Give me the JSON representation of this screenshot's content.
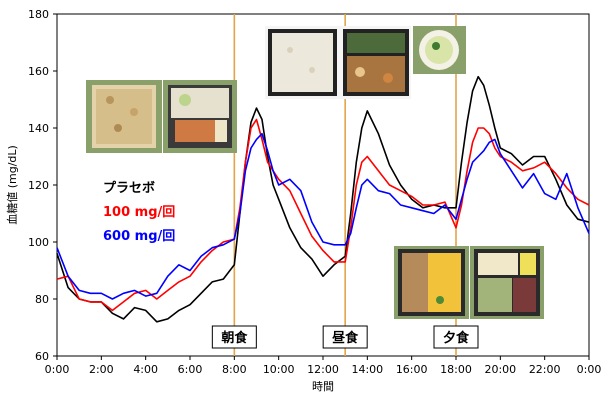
{
  "chart_data": {
    "type": "line",
    "xlabel": "時間",
    "ylabel": "血糖値 (mg/dL)",
    "xlim": [
      0,
      24
    ],
    "ylim": [
      60,
      180
    ],
    "x_ticks": [
      "0:00",
      "2:00",
      "4:00",
      "6:00",
      "8:00",
      "10:00",
      "12:00",
      "14:00",
      "16:00",
      "18:00",
      "20:00",
      "22:00",
      "0:00"
    ],
    "y_ticks": [
      60,
      80,
      100,
      120,
      140,
      160,
      180
    ],
    "grid": false,
    "legend_position": "left",
    "meals": [
      {
        "label": "朝食",
        "time": 8.0
      },
      {
        "label": "昼食",
        "time": 13.0
      },
      {
        "label": "夕食",
        "time": 18.0
      }
    ],
    "series": [
      {
        "name": "プラセボ",
        "color": "#000000",
        "x": [
          0,
          0.5,
          1,
          1.5,
          2,
          2.5,
          3,
          3.5,
          4,
          4.5,
          5,
          5.5,
          6,
          6.5,
          7,
          7.5,
          8,
          8.25,
          8.5,
          8.75,
          9,
          9.25,
          9.5,
          9.75,
          10,
          10.5,
          11,
          11.5,
          12,
          12.5,
          13,
          13.25,
          13.5,
          13.75,
          14,
          14.5,
          15,
          15.5,
          16,
          16.5,
          17,
          17.5,
          18,
          18.25,
          18.5,
          18.75,
          19,
          19.25,
          19.5,
          19.75,
          20,
          20.5,
          21,
          21.5,
          22,
          22.5,
          23,
          23.5,
          24
        ],
        "y": [
          96,
          84,
          80,
          79,
          79,
          75,
          73,
          77,
          76,
          72,
          73,
          76,
          78,
          82,
          86,
          87,
          92,
          110,
          128,
          142,
          147,
          143,
          130,
          120,
          115,
          105,
          98,
          94,
          88,
          92,
          95,
          110,
          128,
          140,
          146,
          138,
          127,
          120,
          115,
          112,
          113,
          112,
          112,
          128,
          142,
          153,
          158,
          155,
          148,
          140,
          133,
          131,
          127,
          130,
          130,
          122,
          113,
          108,
          107
        ]
      },
      {
        "name": "100 mg/回",
        "color": "#ff0000",
        "x": [
          0,
          0.5,
          1,
          1.5,
          2,
          2.5,
          3,
          3.5,
          4,
          4.5,
          5,
          5.5,
          6,
          6.5,
          7,
          7.5,
          8,
          8.25,
          8.5,
          8.75,
          9,
          9.25,
          9.5,
          9.75,
          10,
          10.5,
          11,
          11.5,
          12,
          12.5,
          13,
          13.25,
          13.5,
          13.75,
          14,
          14.5,
          15,
          15.5,
          16,
          16.5,
          17,
          17.5,
          18,
          18.25,
          18.5,
          18.75,
          19,
          19.25,
          19.5,
          19.75,
          20,
          20.5,
          21,
          21.5,
          22,
          22.5,
          23,
          23.5,
          24
        ],
        "y": [
          87,
          88,
          80,
          79,
          79,
          76,
          79,
          82,
          83,
          80,
          83,
          86,
          88,
          93,
          97,
          100,
          101,
          112,
          128,
          140,
          143,
          136,
          128,
          125,
          122,
          118,
          110,
          102,
          97,
          93,
          93,
          105,
          120,
          128,
          130,
          125,
          120,
          118,
          116,
          113,
          113,
          114,
          105,
          113,
          125,
          135,
          140,
          140,
          138,
          133,
          130,
          128,
          125,
          126,
          128,
          124,
          119,
          115,
          113
        ]
      },
      {
        "name": "600 mg/回",
        "color": "#0000ff",
        "x": [
          0,
          0.5,
          1,
          1.5,
          2,
          2.5,
          3,
          3.5,
          4,
          4.5,
          5,
          5.5,
          6,
          6.5,
          7,
          7.5,
          8,
          8.25,
          8.5,
          8.75,
          9,
          9.25,
          9.5,
          9.75,
          10,
          10.5,
          11,
          11.5,
          12,
          12.5,
          13,
          13.25,
          13.5,
          13.75,
          14,
          14.5,
          15,
          15.5,
          16,
          16.5,
          17,
          17.5,
          18,
          18.25,
          18.5,
          18.75,
          19,
          19.25,
          19.5,
          19.75,
          20,
          20.5,
          21,
          21.5,
          22,
          22.5,
          23,
          23.5,
          24
        ],
        "y": [
          98,
          88,
          83,
          82,
          82,
          80,
          82,
          83,
          81,
          82,
          88,
          92,
          90,
          95,
          98,
          99,
          101,
          110,
          125,
          133,
          136,
          138,
          132,
          125,
          120,
          122,
          118,
          107,
          100,
          99,
          99,
          103,
          112,
          120,
          122,
          118,
          117,
          113,
          112,
          111,
          110,
          113,
          108,
          115,
          122,
          128,
          130,
          132,
          135,
          136,
          131,
          125,
          119,
          124,
          117,
          115,
          124,
          112,
          103
        ]
      }
    ]
  },
  "food_photos": [
    {
      "meal": "朝食",
      "items": [
        "rice-box",
        "fish-bento"
      ]
    },
    {
      "meal": "昼食",
      "items": [
        "rice-box",
        "stew-bento",
        "soup-bowl"
      ]
    },
    {
      "meal": "夕食",
      "items": [
        "egg-rice-box",
        "noodle-bento"
      ]
    }
  ]
}
